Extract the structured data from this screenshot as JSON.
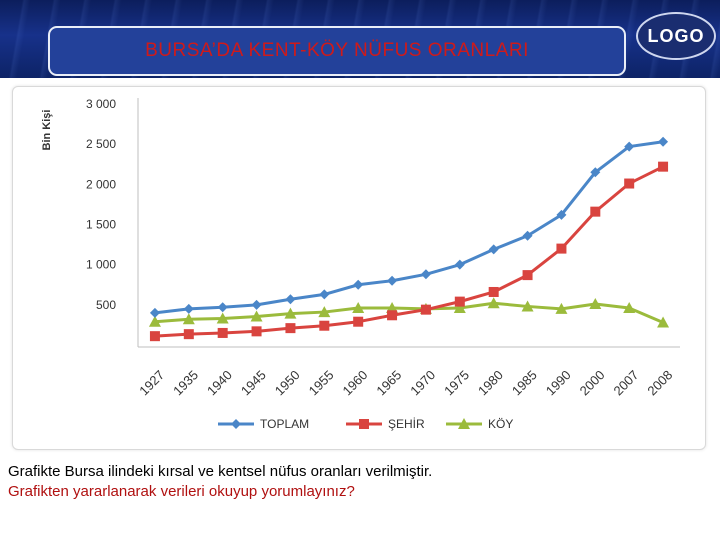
{
  "header": {
    "title": "BURSA’DA KENT-KÖY NÜFUS ORANLARI",
    "logo": "LOGO"
  },
  "colors": {
    "title": "#cf1a1a",
    "toplam": "#4a86c8",
    "sehir": "#d9443f",
    "koy": "#9bbb3c"
  },
  "chart_data": {
    "type": "line",
    "ylabel": "Bin Kişi",
    "xlabel": "",
    "ylim": [
      0,
      3000
    ],
    "yticks": [
      {
        "value": 500,
        "label": "500"
      },
      {
        "value": 1000,
        "label": "1 000"
      },
      {
        "value": 1500,
        "label": "1 500"
      },
      {
        "value": 2000,
        "label": "2 000"
      },
      {
        "value": 2500,
        "label": "2 500"
      },
      {
        "value": 3000,
        "label": "3 000"
      }
    ],
    "categories": [
      "1927",
      "1935",
      "1940",
      "1945",
      "1950",
      "1955",
      "1960",
      "1965",
      "1970",
      "1975",
      "1980",
      "1985",
      "1990",
      "2000",
      "2007",
      "2008"
    ],
    "legend_position": "bottom",
    "grid": false,
    "series": [
      {
        "name": "TOPLAM",
        "marker": "diamond",
        "color": "#4a86c8",
        "values": [
          400,
          450,
          470,
          500,
          570,
          630,
          750,
          800,
          880,
          1000,
          1190,
          1360,
          1620,
          2150,
          2470,
          2530
        ]
      },
      {
        "name": "ŞEHİR",
        "marker": "square",
        "color": "#d9443f",
        "values": [
          110,
          135,
          150,
          170,
          210,
          240,
          290,
          370,
          440,
          540,
          660,
          870,
          1200,
          1660,
          2010,
          2220
        ]
      },
      {
        "name": "KÖY",
        "marker": "triangle",
        "color": "#9bbb3c",
        "values": [
          290,
          320,
          330,
          355,
          390,
          410,
          460,
          460,
          450,
          460,
          520,
          480,
          450,
          510,
          460,
          280
        ]
      }
    ]
  },
  "caption": {
    "line1": "Grafikte Bursa ilindeki kırsal ve kentsel nüfus oranları verilmiştir.",
    "line2": "Grafikten yararlanarak verileri okuyup yorumlayınız?"
  }
}
